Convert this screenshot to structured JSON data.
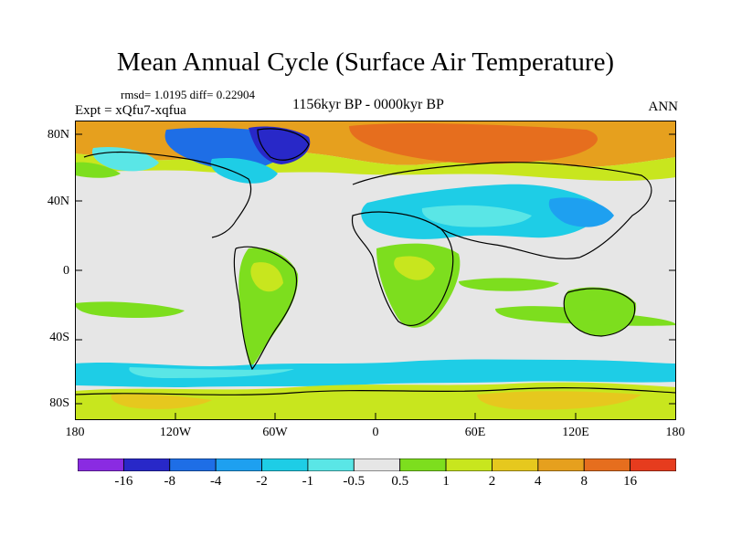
{
  "title": "Mean Annual Cycle (Surface Air Temperature)",
  "stats": "rmsd= 1.0195 diff= 0.22904",
  "experiment": "Expt = xQfu7-xqfua",
  "period": "1156kyr BP - 0000kyr BP",
  "season": "ANN",
  "lat_labels": [
    "80N",
    "40N",
    "0",
    "40S",
    "80S"
  ],
  "lon_labels": [
    "180",
    "120W",
    "60W",
    "0",
    "60E",
    "120E",
    "180"
  ],
  "colorbar": {
    "colors": [
      "#8a2be2",
      "#2828c8",
      "#1e6ee6",
      "#1ea0f0",
      "#1ecde6",
      "#5ae6e6",
      "#e6e6e6",
      "#7dde1e",
      "#c8e61e",
      "#e6c81e",
      "#e6a01e",
      "#e66e1e",
      "#e63c1e"
    ],
    "labels": [
      "-16",
      "-8",
      "-4",
      "-2",
      "-1",
      "-0.5",
      "0.5",
      "1",
      "2",
      "4",
      "8",
      "16"
    ]
  }
}
